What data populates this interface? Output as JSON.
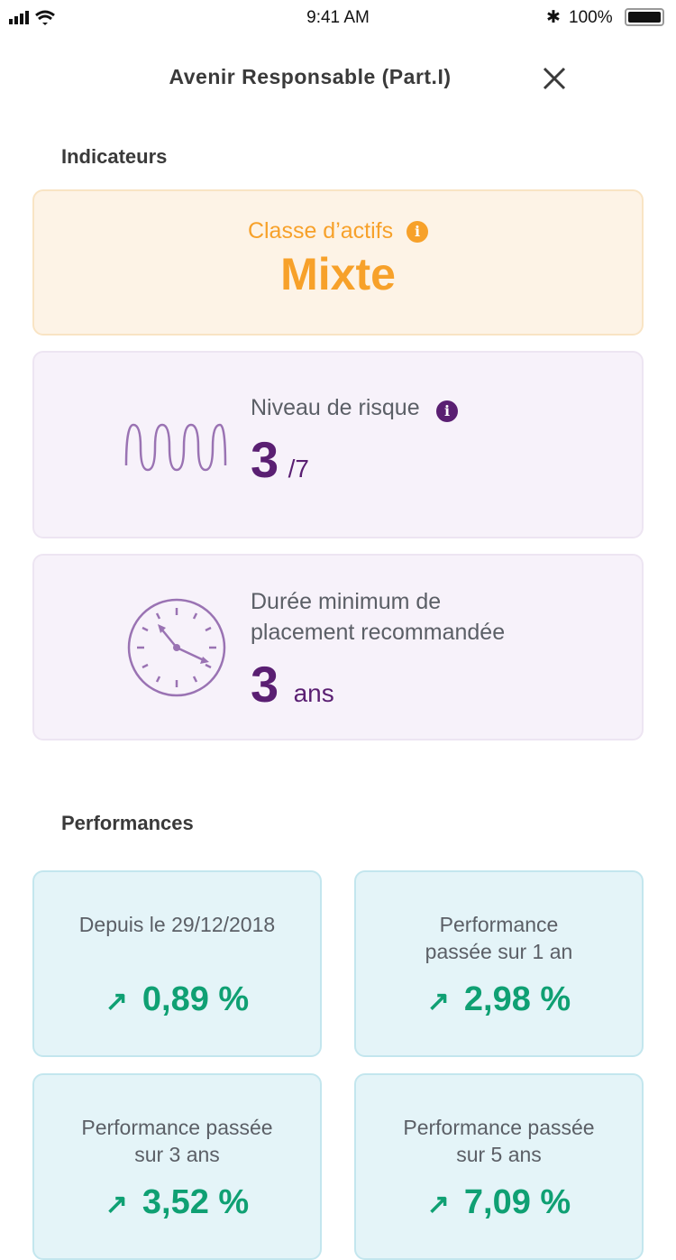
{
  "status_bar": {
    "time": "9:41 AM",
    "battery": "100%",
    "icons": [
      "signal-icon",
      "wifi-icon",
      "bluetooth-icon",
      "battery-icon"
    ]
  },
  "header": {
    "title": "Avenir Responsable (Part.I)",
    "close_icon": "close-icon"
  },
  "indicators": {
    "section_title": "Indicateurs",
    "asset_class": {
      "label": "Classe d’actifs",
      "value": "Mixte",
      "color": "#f7a12a"
    },
    "risk": {
      "label": "Niveau de risque",
      "value": "3",
      "max": "/7",
      "icon": "wave-icon",
      "color": "#5a1f72"
    },
    "duration": {
      "label_line1": "Durée minimum de",
      "label_line2": "placement recommandée",
      "value": "3",
      "unit": "ans",
      "icon": "clock-icon"
    }
  },
  "performances": {
    "section_title": "Performances",
    "color": "#0fa073",
    "items": [
      {
        "line1": "Depuis le 29/12/2018",
        "line2": "",
        "value": "0,89 %"
      },
      {
        "line1": "Performance",
        "line2": "passée sur 1 an",
        "value": "2,98 %"
      },
      {
        "line1": "Performance passée",
        "line2": "sur 3 ans",
        "value": "3,52 %"
      },
      {
        "line1": "Performance passée",
        "line2": "sur 5 ans",
        "value": "7,09 %"
      }
    ]
  }
}
